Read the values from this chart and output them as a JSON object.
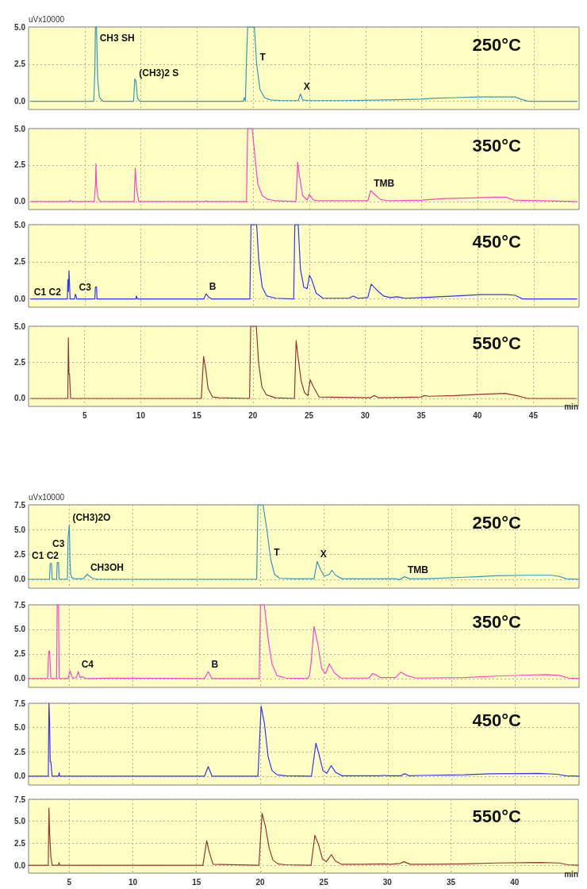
{
  "chart_data": [
    {
      "type": "line",
      "title": "250°C",
      "ylabel": "uVx10000",
      "color": "#3399bb",
      "marker": "none",
      "grid": true,
      "tick_labels": "y",
      "xlim": [
        0,
        49
      ],
      "xticks": [
        5,
        10,
        15,
        20,
        25,
        30,
        35,
        40,
        45
      ],
      "ylim": [
        -0.55,
        5
      ],
      "yticks": [
        {
          "value": 0,
          "label": "0.0"
        },
        {
          "value": 2.5,
          "label": "2.5"
        },
        {
          "value": 5,
          "label": "5.0"
        }
      ],
      "x": [
        0.2,
        5.8,
        5.9,
        5.95,
        6.05,
        6.15,
        6.3,
        6.6,
        9.35,
        9.45,
        9.55,
        9.7,
        9.9,
        19.1,
        19.2,
        19.3,
        19.4,
        19.5,
        19.9,
        20.1,
        20.3,
        20.6,
        21.0,
        21.5,
        22.5,
        24.0,
        24.2,
        24.4,
        25.0,
        28,
        32,
        35,
        36,
        38,
        40,
        42,
        43.3,
        43.8,
        44.5,
        48.8
      ],
      "values": [
        0,
        0,
        2,
        5,
        5,
        1.5,
        0.3,
        0,
        0,
        1.5,
        1.4,
        0.2,
        0,
        0,
        0.25,
        0,
        2.8,
        5,
        5,
        5,
        2.5,
        0.8,
        0.25,
        0.1,
        0.05,
        0.05,
        0.5,
        0.1,
        0.05,
        0.05,
        0.1,
        0.15,
        0.2,
        0.25,
        0.3,
        0.3,
        0.3,
        0.15,
        0,
        0
      ],
      "annotations": [
        {
          "text": "CH3 SH",
          "x": 6.05,
          "y": 5
        },
        {
          "text": "(CH3)2 S",
          "x": 9.55,
          "y": 1.4
        },
        {
          "text": "T",
          "x": 20.3,
          "y": 2.5
        },
        {
          "text": "X",
          "x": 24.2,
          "y": 0.5
        }
      ]
    },
    {
      "type": "line",
      "title": "350°C",
      "color": "#ff44cc",
      "marker": "none",
      "grid": true,
      "tick_labels": "y",
      "xlim": [
        0,
        49
      ],
      "xticks": [
        5,
        10,
        15,
        20,
        25,
        30,
        35,
        40,
        45
      ],
      "ylim": [
        -0.55,
        5
      ],
      "yticks": [
        {
          "value": 0,
          "label": "0.0"
        },
        {
          "value": 2.5,
          "label": "2.5"
        },
        {
          "value": 5,
          "label": "5.0"
        }
      ],
      "x": [
        0.2,
        3.6,
        3.7,
        3.8,
        5.85,
        5.95,
        6.0,
        6.05,
        6.2,
        6.4,
        9.4,
        9.5,
        9.6,
        9.8,
        15.7,
        15.8,
        15.9,
        19.4,
        19.5,
        19.9,
        20.1,
        20.4,
        20.8,
        21.3,
        22,
        23.8,
        23.95,
        24.1,
        24.4,
        24.8,
        25.0,
        25.15,
        25.4,
        25.8,
        30.2,
        30.45,
        30.8,
        31.3,
        32,
        35,
        37,
        39.5,
        41.5,
        42.5,
        43.2,
        48.8
      ],
      "values": [
        0,
        0,
        0.1,
        0,
        0,
        1.1,
        2.6,
        1.1,
        0.2,
        0,
        0,
        2.3,
        1.0,
        0,
        0,
        0.05,
        0,
        0,
        5,
        5,
        3.5,
        1.2,
        0.4,
        0.15,
        0.05,
        0,
        2.7,
        1.8,
        0.4,
        0.1,
        0.5,
        0.3,
        0.1,
        0.05,
        0.05,
        0.75,
        0.5,
        0.15,
        0.05,
        0.1,
        0.2,
        0.25,
        0.3,
        0.3,
        0.1,
        0
      ],
      "annotations": [
        {
          "text": "TMB",
          "x": 30.45,
          "y": 0.75
        }
      ]
    },
    {
      "type": "line",
      "title": "450°C",
      "color": "#3333ff",
      "marker": "none",
      "grid": true,
      "tick_labels": "y",
      "xlim": [
        0,
        49
      ],
      "xticks": [
        5,
        10,
        15,
        20,
        25,
        30,
        35,
        40,
        45
      ],
      "ylim": [
        -0.55,
        5
      ],
      "yticks": [
        {
          "value": 0,
          "label": "0.0"
        },
        {
          "value": 2.5,
          "label": "2.5"
        },
        {
          "value": 5,
          "label": "5.0"
        }
      ],
      "x": [
        0.2,
        3.45,
        3.5,
        3.55,
        3.6,
        3.7,
        4.1,
        4.15,
        4.2,
        4.3,
        5.9,
        5.95,
        6.05,
        6.1,
        9.55,
        9.6,
        9.7,
        15.6,
        15.8,
        16.0,
        16.3,
        19.7,
        19.8,
        20.3,
        20.5,
        20.8,
        21.2,
        22,
        23.6,
        23.7,
        24.0,
        24.2,
        24.5,
        24.8,
        25.0,
        25.2,
        25.6,
        26.2,
        28.5,
        28.9,
        29.3,
        30.2,
        30.5,
        31.0,
        31.6,
        32.2,
        32.8,
        33.5,
        35,
        38,
        40.3,
        42.5,
        43.3,
        44,
        48.8
      ],
      "values": [
        0,
        0,
        1.3,
        0.5,
        1.9,
        0,
        0,
        0.3,
        0.3,
        0,
        0,
        0.8,
        0.8,
        0,
        0,
        0.2,
        0,
        0,
        0.35,
        0.15,
        0,
        0,
        5,
        5,
        2.5,
        0.8,
        0.2,
        0.05,
        0,
        5,
        5,
        2.0,
        0.8,
        0.7,
        1.6,
        1.3,
        0.4,
        0.05,
        0.05,
        0.2,
        0.05,
        0.1,
        1.0,
        0.6,
        0.2,
        0.1,
        0.15,
        0.05,
        0.1,
        0.2,
        0.3,
        0.3,
        0.25,
        0,
        0
      ],
      "annotations": [
        {
          "text": "C1 C2",
          "x": 0.2,
          "y": 0
        },
        {
          "text": "C3",
          "x": 4.2,
          "y": 0.3
        },
        {
          "text": "B",
          "x": 15.8,
          "y": 0.35
        }
      ]
    },
    {
      "type": "line",
      "title": "550°C",
      "xlabel": "min",
      "color": "#993333",
      "marker": "none",
      "grid": true,
      "xlim": [
        0,
        49
      ],
      "xticks": [
        5,
        10,
        15,
        20,
        25,
        30,
        35,
        40,
        45
      ],
      "ylim": [
        -0.55,
        5
      ],
      "yticks": [
        {
          "value": 0,
          "label": "0.0"
        },
        {
          "value": 2.5,
          "label": "2.5"
        },
        {
          "value": 5,
          "label": "5.0"
        }
      ],
      "x": [
        0.2,
        3.5,
        3.55,
        3.6,
        3.65,
        3.75,
        4.2,
        15.4,
        15.6,
        15.8,
        16.0,
        16.4,
        17,
        19.7,
        19.8,
        20.3,
        20.5,
        20.8,
        21.2,
        22,
        23.7,
        23.85,
        24.0,
        24.3,
        24.6,
        24.9,
        25.1,
        25.4,
        25.9,
        30.5,
        30.8,
        31.2,
        35,
        35.3,
        35.7,
        38,
        40.5,
        42.5,
        43.5,
        44.5,
        48.8
      ],
      "values": [
        0,
        0,
        4.2,
        1.7,
        1.7,
        0,
        0,
        0,
        2.9,
        2.0,
        0.7,
        0.1,
        0.05,
        0,
        5,
        5,
        2.5,
        0.8,
        0.25,
        0.05,
        0,
        4.0,
        3.0,
        1.2,
        0.4,
        0.2,
        1.3,
        0.8,
        0.1,
        0.05,
        0.2,
        0.05,
        0.1,
        0.2,
        0.15,
        0.2,
        0.3,
        0.35,
        0.2,
        0,
        0
      ]
    },
    {
      "type": "line",
      "title": "250°C",
      "ylabel": "uVx10000",
      "color": "#3399bb",
      "marker": "none",
      "grid": true,
      "tick_labels": "y",
      "xlim": [
        1.8,
        45
      ],
      "xticks": [
        5,
        10,
        15,
        20,
        25,
        30,
        35,
        40
      ],
      "ylim": [
        -0.9,
        7.5
      ],
      "yticks": [
        {
          "value": 0,
          "label": "0.0"
        },
        {
          "value": 2.5,
          "label": "2.5"
        },
        {
          "value": 5,
          "label": "5.0"
        },
        {
          "value": 7.5,
          "label": "7.5"
        }
      ],
      "x": [
        1.8,
        3.45,
        3.5,
        3.6,
        3.65,
        4.0,
        4.05,
        4.15,
        4.2,
        4.85,
        4.9,
        5.0,
        5.05,
        5.1,
        5.2,
        5.4,
        6.1,
        6.4,
        6.8,
        7.2,
        19.7,
        19.8,
        20.2,
        20.5,
        20.8,
        21.1,
        21.5,
        22.5,
        24.2,
        24.45,
        24.7,
        25.0,
        25.4,
        25.6,
        25.9,
        26.4,
        30.6,
        30.9,
        31.3,
        31.7,
        33,
        35.9,
        37,
        38.4,
        40.9,
        42.8,
        43.4,
        44,
        45
      ],
      "values": [
        0,
        0,
        1.6,
        1.6,
        0,
        0,
        1.7,
        1.7,
        0,
        0,
        4.1,
        5.5,
        2.0,
        0.5,
        0.15,
        0.05,
        0.05,
        0.5,
        0.1,
        0,
        0,
        7.5,
        7.5,
        5.0,
        2.0,
        0.5,
        0.1,
        0.05,
        0.05,
        1.8,
        1.0,
        0.3,
        0.5,
        0.9,
        0.4,
        0.05,
        0.05,
        -0.05,
        0.25,
        0.05,
        0.05,
        0.2,
        0.25,
        0.35,
        0.4,
        0.4,
        0.3,
        0.05,
        0
      ],
      "annotations": [
        {
          "text": "C1 C2",
          "x": 1.8,
          "y": 0
        },
        {
          "text": "C3",
          "x": 4.15,
          "y": 1.7
        },
        {
          "text": "(CH3)2O",
          "x": 5.0,
          "y": 5.5
        },
        {
          "text": "CH3OH",
          "x": 6.4,
          "y": 0.5
        },
        {
          "text": "T",
          "x": 20.8,
          "y": 2.0
        },
        {
          "text": "X",
          "x": 24.45,
          "y": 1.8
        },
        {
          "text": "TMB",
          "x": 31.3,
          "y": 0.25
        }
      ]
    },
    {
      "type": "line",
      "title": "350°C",
      "color": "#ff44cc",
      "marker": "none",
      "grid": true,
      "tick_labels": "y",
      "xlim": [
        1.8,
        45
      ],
      "xticks": [
        5,
        10,
        15,
        20,
        25,
        30,
        35,
        40
      ],
      "ylim": [
        -0.9,
        7.5
      ],
      "yticks": [
        {
          "value": 0,
          "label": "0.0"
        },
        {
          "value": 2.5,
          "label": "2.5"
        },
        {
          "value": 5,
          "label": "5.0"
        },
        {
          "value": 7.5,
          "label": "7.5"
        }
      ],
      "x": [
        1.8,
        3.3,
        3.35,
        3.4,
        3.45,
        3.55,
        4.0,
        4.05,
        4.15,
        4.2,
        4.9,
        5.05,
        5.2,
        5.3,
        5.55,
        5.7,
        5.85,
        6.0,
        6.2,
        6.4,
        8.2,
        15.6,
        15.9,
        16.2,
        19.9,
        20.0,
        20.3,
        20.6,
        20.9,
        21.3,
        22,
        23.7,
        23.85,
        24.0,
        24.2,
        24.5,
        24.8,
        25.1,
        25.4,
        25.8,
        26.3,
        28.5,
        28.8,
        29.1,
        29.4,
        30.6,
        31.0,
        31.5,
        32.2,
        36,
        38.5,
        41,
        42.5,
        43.5,
        44.2,
        45
      ],
      "values": [
        0,
        0,
        2.0,
        2.8,
        2.8,
        0,
        0,
        7.5,
        7.5,
        0,
        0,
        0.8,
        0.2,
        0.05,
        0.1,
        0.7,
        0.1,
        0.2,
        0.05,
        0,
        0.05,
        0,
        0.7,
        0,
        0,
        7.5,
        7.5,
        4.0,
        1.5,
        0.3,
        0.05,
        0,
        0.3,
        2.0,
        5.3,
        3.5,
        1.0,
        0.5,
        1.5,
        0.6,
        0.05,
        0.05,
        0.5,
        0.35,
        0.1,
        0.1,
        0.65,
        0.3,
        0.05,
        0.1,
        0.25,
        0.35,
        0.4,
        0.3,
        0.05,
        0
      ],
      "annotations": [
        {
          "text": "C4",
          "x": 5.7,
          "y": 0.7
        },
        {
          "text": "B",
          "x": 15.9,
          "y": 0.7
        }
      ]
    },
    {
      "type": "line",
      "title": "450°C",
      "color": "#3333ff",
      "marker": "none",
      "grid": true,
      "tick_labels": "y",
      "xlim": [
        1.8,
        45
      ],
      "xticks": [
        5,
        10,
        15,
        20,
        25,
        30,
        35,
        40
      ],
      "ylim": [
        -0.9,
        7.5
      ],
      "yticks": [
        {
          "value": 0,
          "label": "0.0"
        },
        {
          "value": 2.5,
          "label": "2.5"
        },
        {
          "value": 5,
          "label": "5.0"
        },
        {
          "value": 7.5,
          "label": "7.5"
        }
      ],
      "x": [
        1.8,
        3.35,
        3.4,
        3.45,
        3.5,
        3.55,
        3.65,
        4.15,
        4.2,
        4.25,
        15.6,
        15.9,
        16.2,
        19.8,
        20.05,
        20.3,
        20.6,
        20.9,
        21.3,
        22,
        24.0,
        24.35,
        24.6,
        24.9,
        25.2,
        25.55,
        25.9,
        26.4,
        29.4,
        29.7,
        30,
        31.0,
        31.3,
        31.7,
        33,
        36,
        38,
        41.9,
        43.3,
        44,
        45
      ],
      "values": [
        0,
        0,
        7.5,
        5.8,
        1.5,
        1.5,
        0,
        0,
        0.35,
        0,
        0,
        1.0,
        0,
        0,
        7.2,
        5.5,
        2.0,
        0.6,
        0.15,
        0.05,
        0,
        3.4,
        2.2,
        0.6,
        0.3,
        1.1,
        0.4,
        0.05,
        0.05,
        0.1,
        0.05,
        0.05,
        0.25,
        0.05,
        0.1,
        0.15,
        0.25,
        0.3,
        0.2,
        0.05,
        0
      ]
    },
    {
      "type": "line",
      "title": "550°C",
      "xlabel": "min",
      "color": "#993333",
      "marker": "none",
      "grid": true,
      "xlim": [
        1.8,
        45
      ],
      "xticks": [
        5,
        10,
        15,
        20,
        25,
        30,
        35,
        40
      ],
      "ylim": [
        -0.9,
        7.5
      ],
      "yticks": [
        {
          "value": 0,
          "label": "0.0"
        },
        {
          "value": 2.5,
          "label": "2.5"
        },
        {
          "value": 5,
          "label": "5.0"
        },
        {
          "value": 7.5,
          "label": "7.5"
        }
      ],
      "x": [
        1.8,
        3.35,
        3.4,
        3.45,
        3.5,
        3.55,
        3.65,
        4.15,
        4.2,
        4.25,
        15.5,
        15.8,
        16.0,
        16.3,
        19.9,
        20.15,
        20.4,
        20.7,
        21.0,
        21.4,
        22,
        24.0,
        24.3,
        24.6,
        24.9,
        25.2,
        25.6,
        25.9,
        26.4,
        28,
        29.7,
        30.2,
        31.0,
        31.3,
        31.8,
        33,
        36,
        38.5,
        42,
        43.5,
        44.2,
        45
      ],
      "values": [
        0,
        0,
        6.5,
        3.8,
        2.5,
        1.0,
        0,
        0,
        0.3,
        0,
        0,
        2.8,
        1.5,
        0.1,
        0,
        5.9,
        4.5,
        2.0,
        0.6,
        0.15,
        0.05,
        0,
        3.4,
        2.3,
        0.7,
        0.4,
        1.2,
        0.5,
        0.1,
        0.1,
        0.15,
        0.1,
        0.2,
        0.4,
        0.1,
        0.1,
        0.15,
        0.25,
        0.3,
        0.25,
        0.05,
        0
      ]
    }
  ]
}
